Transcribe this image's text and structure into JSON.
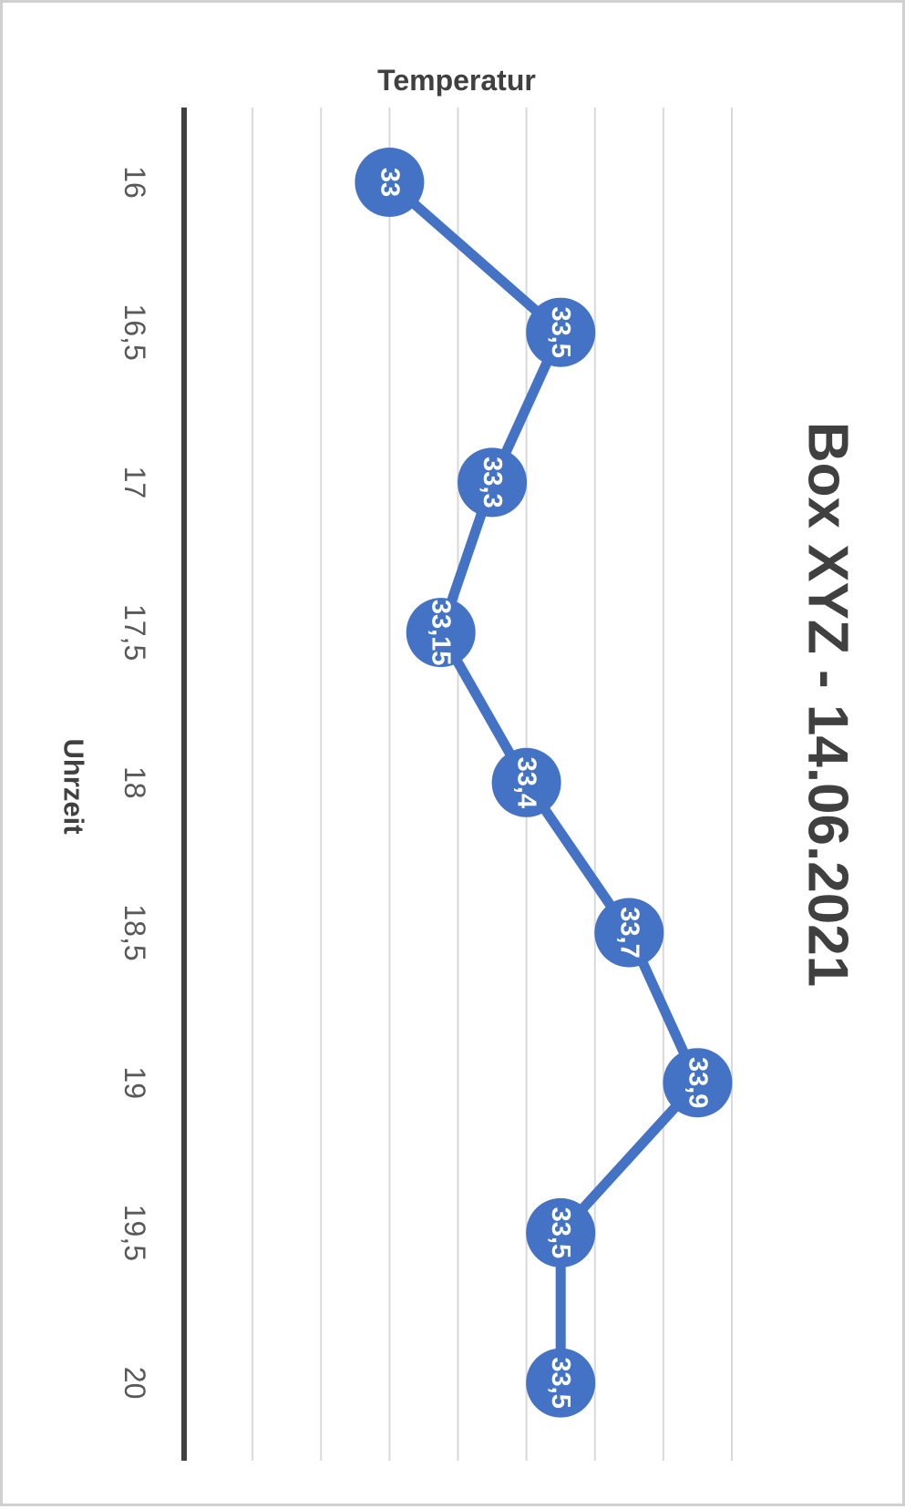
{
  "chart_data": {
    "type": "line",
    "title": "Box XYZ - 14.06.2021",
    "xlabel": "Uhrzeit",
    "ylabel": "Temperatur",
    "x": [
      "16",
      "16,5",
      "17",
      "17,5",
      "18",
      "18,5",
      "19",
      "19,5",
      "20"
    ],
    "series": [
      {
        "values": [
          33,
          33.5,
          33.3,
          33.15,
          33.4,
          33.7,
          33.9,
          33.5,
          33.5
        ],
        "data_labels": [
          "33",
          "33,5",
          "33,3",
          "33,15",
          "33,4",
          "33,7",
          "33,9",
          "33,5",
          "33,5"
        ]
      }
    ],
    "ylim": [
      32.4,
      34.0
    ],
    "grid": true,
    "rotation": "90deg clockwise",
    "colors": {
      "series": "#4472c4",
      "label_text": "#ffffff",
      "grid": "#d9d9d9",
      "axis": "#404040",
      "title": "#404040",
      "tick": "#595959"
    }
  }
}
